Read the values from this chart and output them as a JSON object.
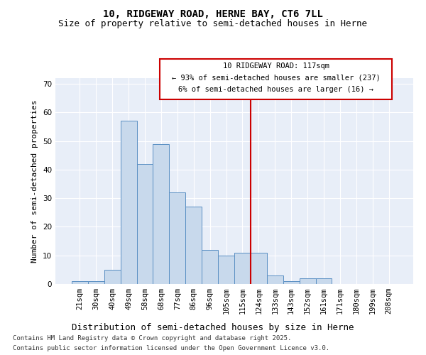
{
  "title1": "10, RIDGEWAY ROAD, HERNE BAY, CT6 7LL",
  "title2": "Size of property relative to semi-detached houses in Herne",
  "xlabel": "Distribution of semi-detached houses by size in Herne",
  "ylabel": "Number of semi-detached properties",
  "categories": [
    "21sqm",
    "30sqm",
    "40sqm",
    "49sqm",
    "58sqm",
    "68sqm",
    "77sqm",
    "86sqm",
    "96sqm",
    "105sqm",
    "115sqm",
    "124sqm",
    "133sqm",
    "143sqm",
    "152sqm",
    "161sqm",
    "171sqm",
    "180sqm",
    "199sqm",
    "208sqm"
  ],
  "values": [
    1,
    1,
    5,
    57,
    42,
    49,
    32,
    27,
    12,
    10,
    11,
    11,
    3,
    1,
    2,
    2,
    0,
    0,
    0,
    0
  ],
  "bar_color": "#c8d9ec",
  "bar_edge_color": "#5a8fc3",
  "bar_width": 1.0,
  "vline_x": 10.5,
  "vline_color": "#cc0000",
  "vline_label": "10 RIDGEWAY ROAD: 117sqm",
  "annotation_smaller": "← 93% of semi-detached houses are smaller (237)",
  "annotation_larger": "6% of semi-detached houses are larger (16) →",
  "ylim": [
    0,
    72
  ],
  "yticks": [
    0,
    10,
    20,
    30,
    40,
    50,
    60,
    70
  ],
  "footnote1": "Contains HM Land Registry data © Crown copyright and database right 2025.",
  "footnote2": "Contains public sector information licensed under the Open Government Licence v3.0.",
  "plot_bg_color": "#e8eef8",
  "fig_bg_color": "#ffffff",
  "grid_color": "#ffffff",
  "title1_fontsize": 10,
  "title2_fontsize": 9,
  "xlabel_fontsize": 9,
  "ylabel_fontsize": 8,
  "tick_fontsize": 7.5,
  "footnote_fontsize": 6.5,
  "annotation_fontsize": 7.5,
  "box_color": "#cc0000"
}
